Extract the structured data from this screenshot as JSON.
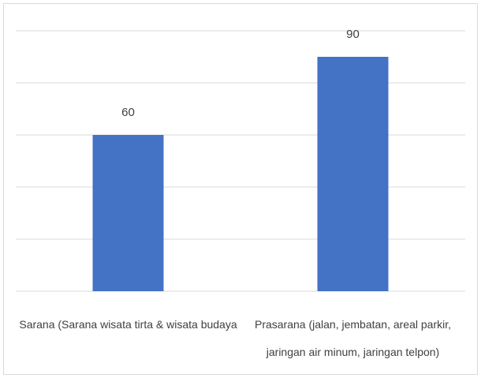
{
  "chart_data": {
    "type": "bar",
    "categories": [
      "Sarana (Sarana wisata tirta & wisata budaya",
      "Prasarana (jalan, jembatan, areal parkir, jaringan air minum, jaringan telpon)"
    ],
    "values": [
      60,
      90
    ],
    "color": "#4472c4",
    "ylim": [
      0,
      100
    ],
    "yticks": [
      0,
      20,
      40,
      60,
      80,
      100
    ],
    "grid": true
  }
}
